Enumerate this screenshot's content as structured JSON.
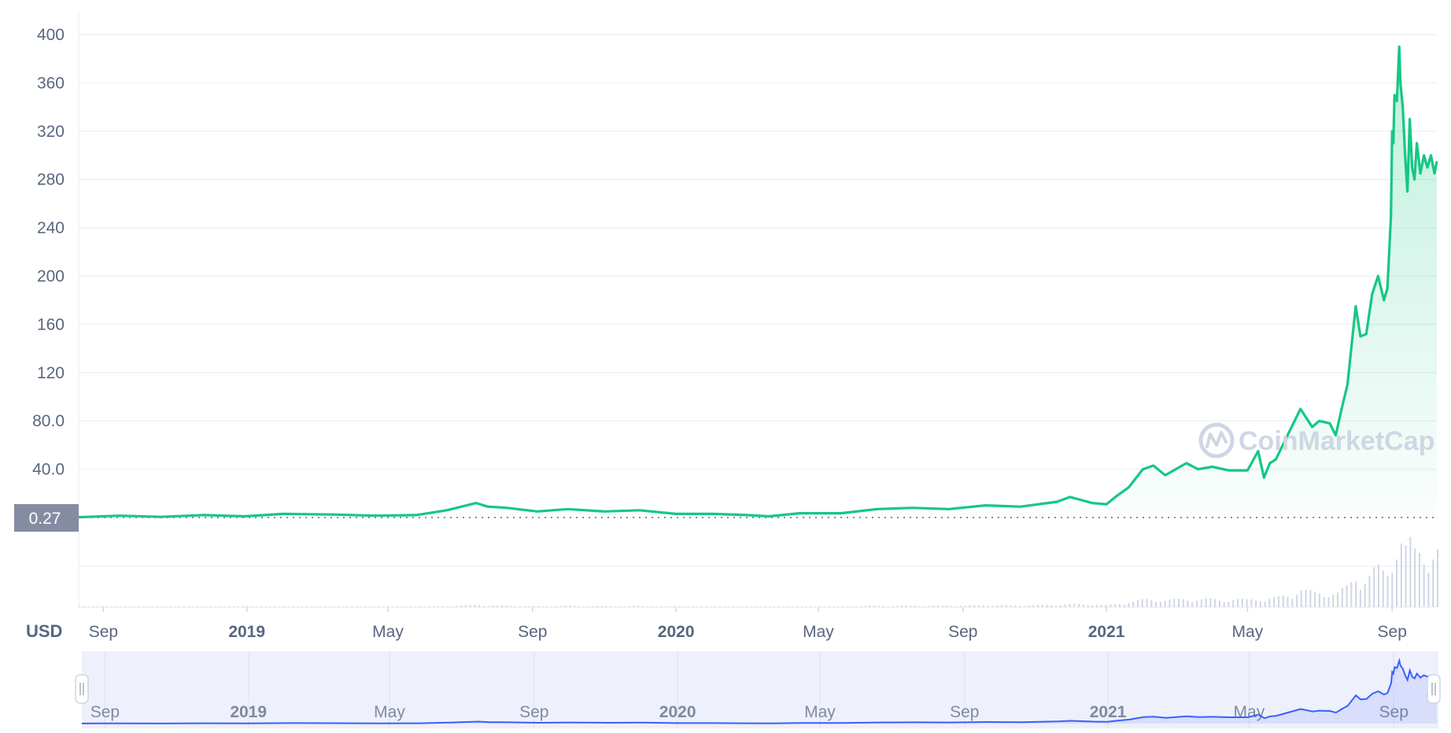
{
  "app": {
    "watermark": "CoinMarketCap",
    "currency_label": "USD"
  },
  "colors": {
    "line": "#16c784",
    "area_top": "#16c784",
    "grid": "#eff2f5",
    "volume": "#cfd6e4",
    "navigator_bg": "#eef0fb",
    "navigator_line": "#3861fb",
    "current_badge": "#858ca2"
  },
  "chart_data": {
    "type": "area",
    "title": "",
    "xlabel": "",
    "ylabel": "USD",
    "ylim": [
      0,
      400
    ],
    "yticks": [
      40,
      80,
      120,
      160,
      200,
      240,
      280,
      320,
      360,
      400
    ],
    "ytick_labels": [
      "40.0",
      "80.0",
      "120",
      "160",
      "200",
      "240",
      "280",
      "320",
      "360",
      "400"
    ],
    "xlim": [
      "2018-08-11",
      "2021-10-09"
    ],
    "xticks": [
      {
        "date": "2018-09-01",
        "label": "Sep",
        "bold": false
      },
      {
        "date": "2019-01-01",
        "label": "2019",
        "bold": true
      },
      {
        "date": "2019-05-01",
        "label": "May",
        "bold": false
      },
      {
        "date": "2019-09-01",
        "label": "Sep",
        "bold": false
      },
      {
        "date": "2020-01-01",
        "label": "2020",
        "bold": true
      },
      {
        "date": "2020-05-01",
        "label": "May",
        "bold": false
      },
      {
        "date": "2020-09-01",
        "label": "Sep",
        "bold": false
      },
      {
        "date": "2021-01-01",
        "label": "2021",
        "bold": true
      },
      {
        "date": "2021-05-01",
        "label": "May",
        "bold": false
      },
      {
        "date": "2021-09-01",
        "label": "Sep",
        "bold": false
      }
    ],
    "current_value_label": "0.27",
    "current_value": 0.27,
    "grid": true,
    "series": [
      {
        "x": [
          "2018-08-11",
          "2018-09-15",
          "2018-10-20",
          "2018-11-25",
          "2018-12-30",
          "2019-02-01",
          "2019-03-15",
          "2019-04-20",
          "2019-05-25",
          "2019-06-20",
          "2019-07-15",
          "2019-07-25",
          "2019-08-10",
          "2019-09-05",
          "2019-10-01",
          "2019-11-01",
          "2019-12-01",
          "2020-01-01",
          "2020-02-01",
          "2020-03-01",
          "2020-03-20",
          "2020-04-15",
          "2020-05-20",
          "2020-06-20",
          "2020-07-20",
          "2020-08-20",
          "2020-09-20",
          "2020-10-20",
          "2020-11-20",
          "2020-12-01",
          "2020-12-20",
          "2021-01-01",
          "2021-01-10",
          "2021-01-20",
          "2021-02-01",
          "2021-02-10",
          "2021-02-20",
          "2021-03-01",
          "2021-03-10",
          "2021-03-20",
          "2021-04-01",
          "2021-04-15",
          "2021-05-01",
          "2021-05-10",
          "2021-05-15",
          "2021-05-20",
          "2021-05-25",
          "2021-06-05",
          "2021-06-15",
          "2021-06-25",
          "2021-07-01",
          "2021-07-10",
          "2021-07-15",
          "2021-07-20",
          "2021-07-25",
          "2021-08-01",
          "2021-08-05",
          "2021-08-10",
          "2021-08-15",
          "2021-08-20",
          "2021-08-25",
          "2021-08-28",
          "2021-08-31",
          "2021-09-01",
          "2021-09-02",
          "2021-09-03",
          "2021-09-05",
          "2021-09-07",
          "2021-09-08",
          "2021-09-10",
          "2021-09-12",
          "2021-09-14",
          "2021-09-16",
          "2021-09-18",
          "2021-09-20",
          "2021-09-22",
          "2021-09-25",
          "2021-09-28",
          "2021-10-01",
          "2021-10-04",
          "2021-10-07",
          "2021-10-09"
        ],
        "values": [
          0.27,
          1.5,
          0.5,
          2.0,
          1.0,
          3.0,
          2.5,
          1.5,
          2.0,
          6.0,
          12.0,
          9.0,
          8.0,
          5.0,
          7.0,
          5.0,
          6.0,
          3.0,
          3.0,
          2.0,
          1.0,
          3.5,
          3.5,
          7.0,
          8.0,
          7.0,
          10.0,
          9.0,
          13.0,
          17.0,
          12.0,
          11.0,
          18.0,
          25.0,
          40.0,
          43.0,
          35.0,
          40.0,
          45.0,
          40.0,
          42.0,
          39.0,
          39.0,
          55.0,
          33.0,
          45.0,
          48.0,
          70.0,
          90.0,
          75.0,
          80.0,
          78.0,
          68.0,
          90.0,
          110.0,
          175.0,
          150.0,
          152.0,
          185.0,
          200.0,
          180.0,
          190.0,
          250.0,
          320.0,
          310.0,
          350.0,
          345.0,
          390.0,
          360.0,
          340.0,
          300.0,
          270.0,
          330.0,
          290.0,
          280.0,
          310.0,
          285.0,
          300.0,
          290.0,
          300.0,
          285.0,
          295.0
        ]
      }
    ]
  }
}
